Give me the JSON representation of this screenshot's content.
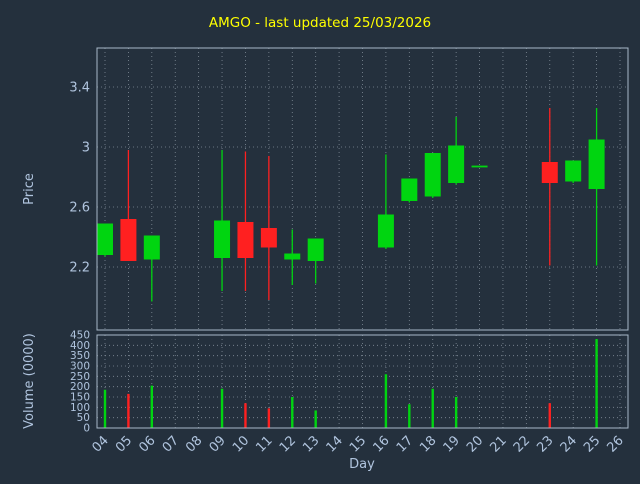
{
  "title": "AMGO - last updated 25/03/2026",
  "chart_data": {
    "type": "candlestick",
    "title": "AMGO - last updated 25/03/2026",
    "xlabel": "Day",
    "ylabel_price": "Price",
    "ylabel_volume": "Volume (0000)",
    "legend": "none",
    "grid": "dotted",
    "categories": [
      "04",
      "05",
      "06",
      "07",
      "08",
      "09",
      "10",
      "11",
      "12",
      "13",
      "14",
      "15",
      "16",
      "17",
      "18",
      "19",
      "20",
      "21",
      "22",
      "23",
      "24",
      "25",
      "26"
    ],
    "price_axis": {
      "min": 1.78,
      "max": 3.66,
      "ticks": [
        2.2,
        2.6,
        3,
        3.4
      ]
    },
    "volume_axis": {
      "min": 0,
      "max": 450,
      "ticks": [
        0,
        50,
        100,
        150,
        200,
        250,
        300,
        350,
        400,
        450
      ]
    },
    "candles": [
      {
        "day": "04",
        "open": 2.28,
        "high": 2.49,
        "low": 2.27,
        "close": 2.49,
        "volume": 185
      },
      {
        "day": "05",
        "open": 2.52,
        "high": 2.98,
        "low": 2.24,
        "close": 2.24,
        "volume": 165
      },
      {
        "day": "06",
        "open": 2.25,
        "high": 2.41,
        "low": 1.97,
        "close": 2.41,
        "volume": 205
      },
      {
        "day": "09",
        "open": 2.26,
        "high": 2.98,
        "low": 2.04,
        "close": 2.51,
        "volume": 190
      },
      {
        "day": "10",
        "open": 2.5,
        "high": 2.97,
        "low": 2.04,
        "close": 2.26,
        "volume": 120
      },
      {
        "day": "11",
        "open": 2.46,
        "high": 2.94,
        "low": 1.98,
        "close": 2.33,
        "volume": 95
      },
      {
        "day": "12",
        "open": 2.25,
        "high": 2.45,
        "low": 2.08,
        "close": 2.29,
        "volume": 150
      },
      {
        "day": "13",
        "open": 2.24,
        "high": 2.39,
        "low": 2.09,
        "close": 2.39,
        "volume": 85
      },
      {
        "day": "16",
        "open": 2.33,
        "high": 2.95,
        "low": 2.32,
        "close": 2.55,
        "volume": 260
      },
      {
        "day": "17",
        "open": 2.64,
        "high": 2.79,
        "low": 2.63,
        "close": 2.79,
        "volume": 115
      },
      {
        "day": "18",
        "open": 2.67,
        "high": 2.96,
        "low": 2.66,
        "close": 2.96,
        "volume": 190
      },
      {
        "day": "19",
        "open": 2.76,
        "high": 3.2,
        "low": 2.75,
        "close": 3.01,
        "volume": 150
      },
      {
        "day": "20",
        "open": 2.87,
        "high": 2.87,
        "low": 2.87,
        "close": 2.87,
        "volume": 0
      },
      {
        "day": "23",
        "open": 2.9,
        "high": 3.26,
        "low": 2.21,
        "close": 2.76,
        "volume": 120
      },
      {
        "day": "24",
        "open": 2.77,
        "high": 2.91,
        "low": 2.76,
        "close": 2.91,
        "volume": 0
      },
      {
        "day": "25",
        "open": 2.72,
        "high": 3.26,
        "low": 2.21,
        "close": 3.05,
        "volume": 430
      }
    ],
    "colors": {
      "up": "#00d510",
      "down": "#ff2020",
      "background": "#24303d",
      "label": "#b0c4de",
      "title": "#ffff00",
      "grid": "#cdd8e3",
      "axis": "#a9b9c9"
    }
  }
}
